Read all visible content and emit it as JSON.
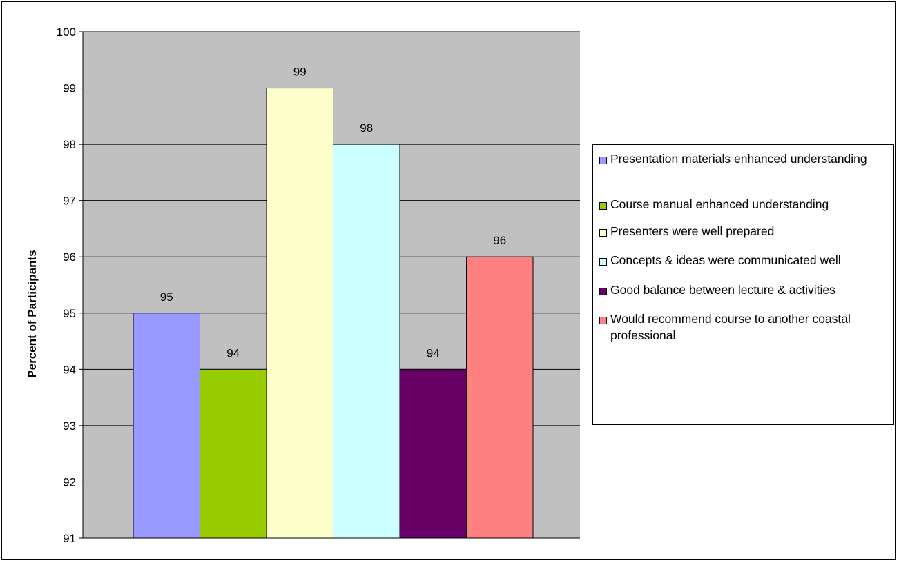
{
  "chart_data": {
    "type": "bar",
    "title": "",
    "xlabel": "",
    "ylabel": "Percent of Participants",
    "ylim": [
      91,
      100
    ],
    "yticks": [
      91,
      92,
      93,
      94,
      95,
      96,
      97,
      98,
      99,
      100
    ],
    "grid": true,
    "plot_background": "#C0C0C0",
    "legend_position": "right",
    "series": [
      {
        "name": "Presentation materials enhanced understanding",
        "value": 95,
        "color": "#9999FF"
      },
      {
        "name": "Course manual enhanced understanding",
        "value": 94,
        "color": "#99CC00"
      },
      {
        "name": "Presenters were well prepared",
        "value": 99,
        "color": "#FFFFCC"
      },
      {
        "name": "Concepts & ideas were communicated well",
        "value": 98,
        "color": "#CCFFFF"
      },
      {
        "name": "Good balance between lecture & activities",
        "value": 94,
        "color": "#660066"
      },
      {
        "name": "Would recommend course to another coastal professional",
        "value": 96,
        "color": "#FF8080"
      }
    ]
  }
}
